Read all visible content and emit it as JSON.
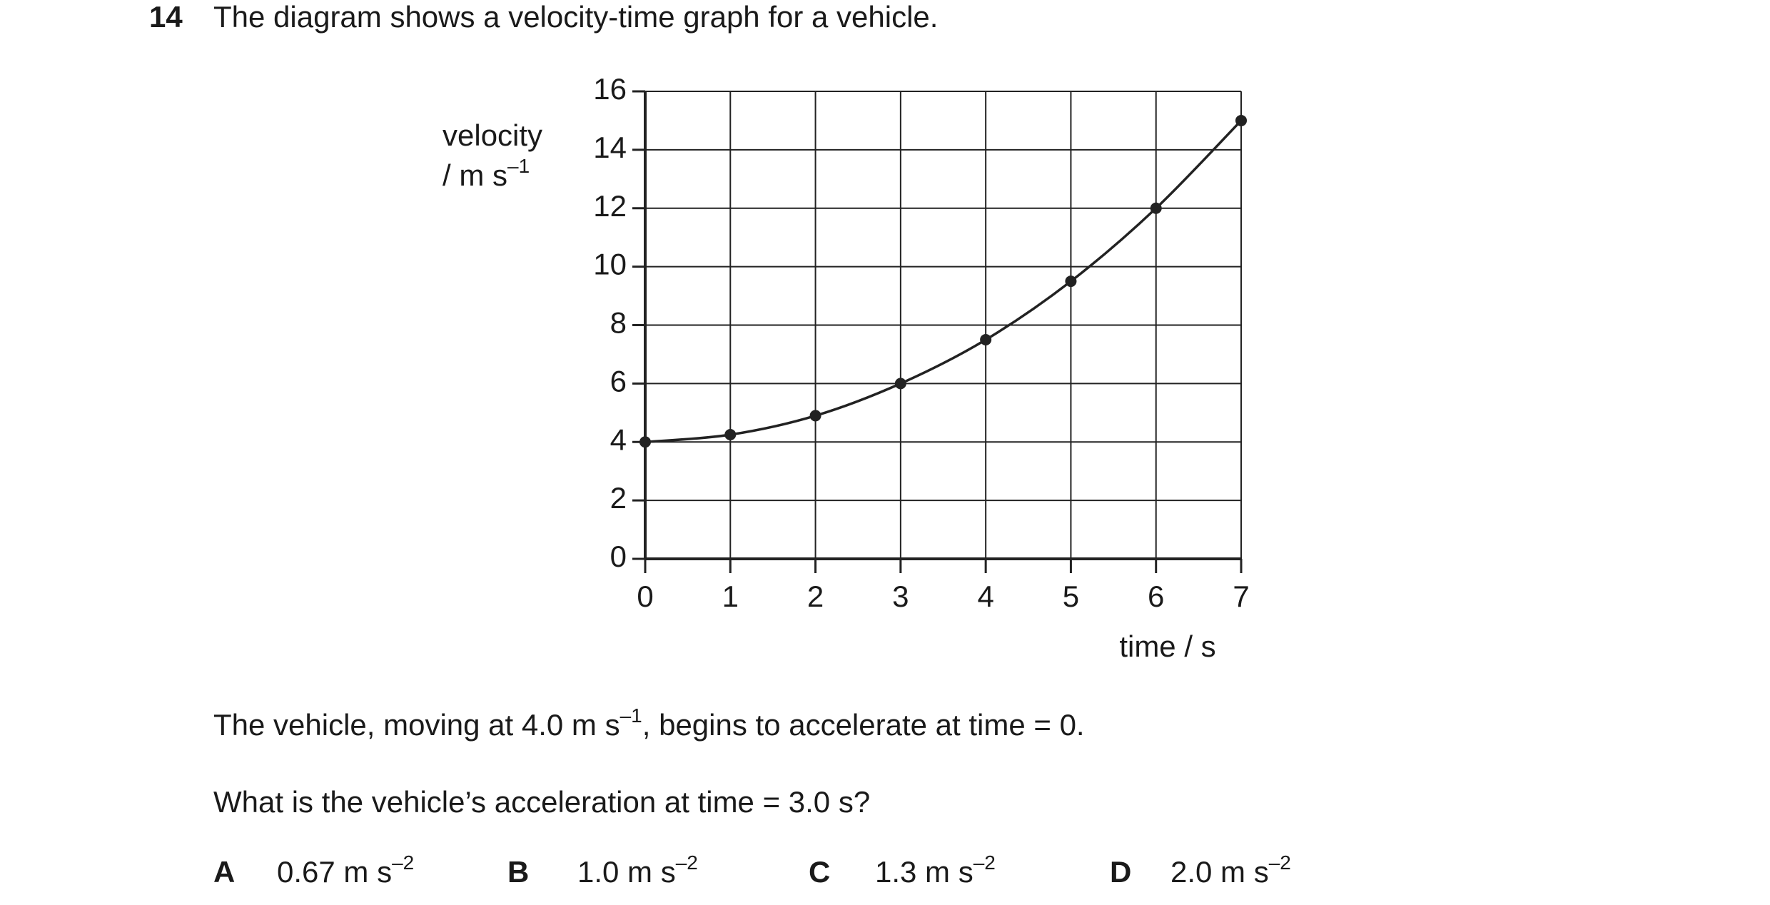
{
  "question": {
    "number": "14",
    "stem": "The diagram shows a velocity-time graph for a vehicle.",
    "info": [
      "The vehicle, moving at 4.0 m s",
      "–1",
      ", begins to accelerate at time = 0."
    ],
    "prompt": "What is the vehicle’s acceleration at time = 3.0 s?",
    "options": [
      {
        "letter": "A",
        "value": "0.67 m s",
        "exponent": "–2"
      },
      {
        "letter": "B",
        "value": "1.0 m s",
        "exponent": "–2"
      },
      {
        "letter": "C",
        "value": "1.3 m s",
        "exponent": "–2"
      },
      {
        "letter": "D",
        "value": "2.0 m s",
        "exponent": "–2"
      }
    ]
  },
  "chart_data": {
    "type": "line",
    "y_label": [
      "velocity",
      "/ m s",
      "–1"
    ],
    "x_label": "time / s",
    "x": [
      0,
      1,
      2,
      3,
      4,
      5,
      6,
      7
    ],
    "series": [
      {
        "color": "#222222",
        "values": [
          4,
          4.25,
          4.9,
          6,
          7.5,
          9.5,
          12,
          15
        ]
      }
    ],
    "xlim": [
      0,
      7
    ],
    "xticks": [
      0,
      1,
      2,
      3,
      4,
      5,
      6,
      7
    ],
    "ylim": [
      0,
      16
    ],
    "yticks": [
      0,
      2,
      4,
      6,
      8,
      10,
      12,
      14,
      16
    ],
    "grid": true
  }
}
